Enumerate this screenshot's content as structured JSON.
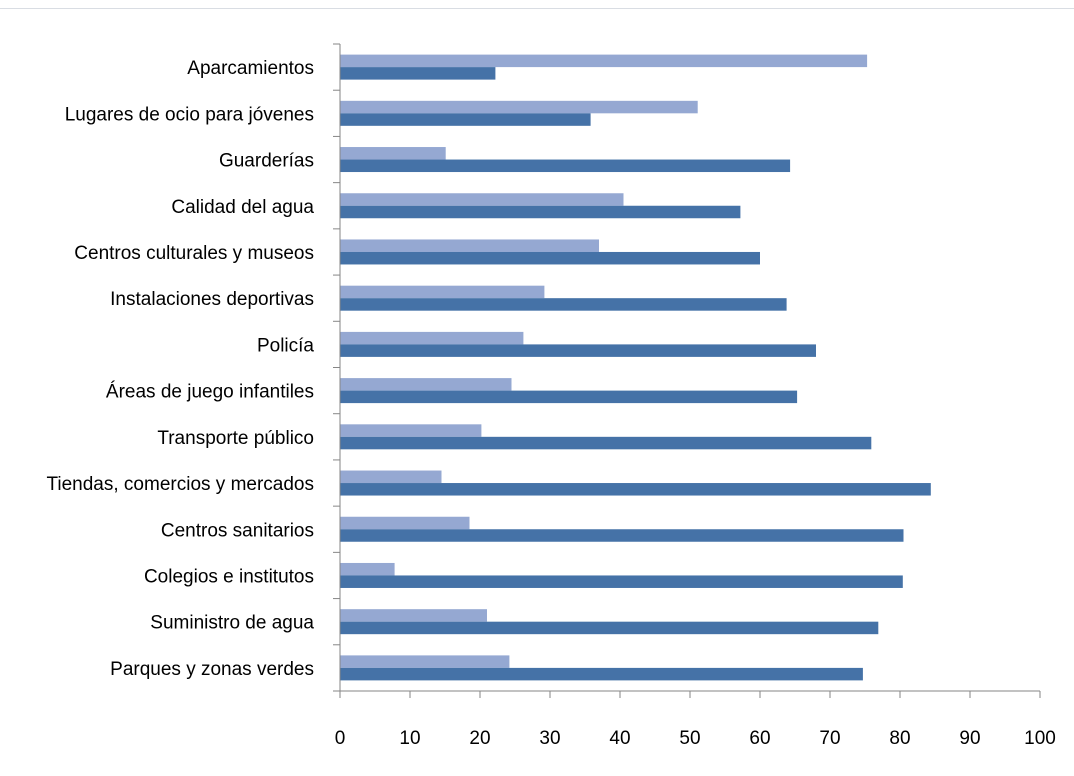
{
  "chart_data": {
    "type": "bar",
    "orientation": "horizontal",
    "title": "",
    "xlabel": "",
    "ylabel": "",
    "xlim": [
      0,
      100
    ],
    "xticks": [
      "0",
      "10",
      "20",
      "30",
      "40",
      "50",
      "60",
      "70",
      "80",
      "90",
      "100"
    ],
    "grid": false,
    "legend": "none",
    "categories": [
      "Aparcamientos",
      "Lugares de ocio para jóvenes",
      "Guarderías",
      "Calidad del agua",
      "Centros culturales y museos",
      "Instalaciones deportivas",
      "Policía",
      "Áreas de juego infantiles",
      "Transporte público",
      "Tiendas, comercios y mercados",
      "Centros sanitarios",
      "Colegios e institutos",
      "Suministro de agua",
      "Parques y zonas verdes"
    ],
    "series": [
      {
        "color": "#95a8d2",
        "values": [
          75.3,
          51.1,
          15.1,
          40.5,
          37.0,
          29.2,
          26.2,
          24.5,
          20.2,
          14.5,
          18.5,
          7.8,
          21.0,
          24.2
        ]
      },
      {
        "color": "#4572a7",
        "values": [
          22.2,
          35.8,
          64.3,
          57.2,
          60.0,
          63.8,
          68.0,
          65.3,
          75.9,
          84.4,
          80.5,
          80.4,
          76.9,
          74.7
        ]
      }
    ]
  }
}
